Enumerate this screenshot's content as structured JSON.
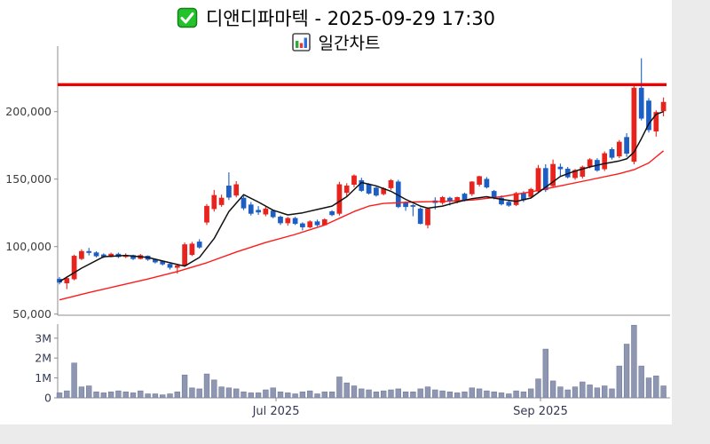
{
  "header": {
    "title": "디앤디파마텍 - 2025-09-29 17:30",
    "subtitle": "일간차트",
    "title_icon": "green-checkbox-icon",
    "subtitle_icon": "bar-chart-icon"
  },
  "chart_data": {
    "type": "candlestick",
    "title": "디앤디파마텍 - 2025-09-29 17:30",
    "subtitle": "일간차트",
    "grid": false,
    "legend": "none",
    "price_axis": {
      "side": "left",
      "ticks": [
        {
          "value": 200000,
          "label": "200,000"
        },
        {
          "value": 150000,
          "label": "150,000"
        },
        {
          "value": 100000,
          "label": "100,000"
        },
        {
          "value": 50000,
          "label": "50,000"
        }
      ],
      "range": [
        47000,
        245000
      ]
    },
    "volume_axis": {
      "side": "left",
      "unit": "millions",
      "ticks": [
        {
          "value": 3,
          "label": "3M"
        },
        {
          "value": 2,
          "label": "2M"
        },
        {
          "value": 1,
          "label": "1M"
        },
        {
          "value": 0,
          "label": "0"
        }
      ],
      "range": [
        0,
        3.75
      ]
    },
    "x_axis": {
      "labels": [
        {
          "text": "Jul 2025",
          "index": 29.4
        },
        {
          "text": "Sep 2025",
          "index": 65.3
        }
      ]
    },
    "hline": {
      "value": 220000,
      "color": "#ee0000"
    },
    "colors": {
      "up": "#e8231d",
      "down": "#1d5ec4",
      "volume": "#8e96b2",
      "volume_edge": "#737d9b",
      "ma_fast": "#111111",
      "ma_slow": "#ff1a1a",
      "axis": "#8c8c8c",
      "price_label": "#3c3c3c",
      "date_label": "#333a52"
    },
    "candles_format": [
      "open",
      "high",
      "low",
      "close",
      "volume_millions"
    ],
    "candles": [
      [
        76000,
        77500,
        72000,
        73500,
        0.25
      ],
      [
        73000,
        78000,
        68500,
        76500,
        0.35
      ],
      [
        76000,
        94000,
        75000,
        93000,
        1.75
      ],
      [
        91000,
        98000,
        90000,
        96500,
        0.55
      ],
      [
        96500,
        99000,
        93500,
        95500,
        0.6
      ],
      [
        95500,
        96500,
        92000,
        93000,
        0.3
      ],
      [
        94000,
        95000,
        91500,
        92500,
        0.25
      ],
      [
        92500,
        95500,
        92000,
        94500,
        0.3
      ],
      [
        94500,
        95500,
        91500,
        92500,
        0.35
      ],
      [
        92500,
        95000,
        91500,
        93500,
        0.3
      ],
      [
        93500,
        94000,
        90000,
        91000,
        0.25
      ],
      [
        91000,
        94500,
        90500,
        93500,
        0.35
      ],
      [
        93000,
        93500,
        89500,
        90500,
        0.2
      ],
      [
        90500,
        91000,
        87500,
        88500,
        0.2
      ],
      [
        89000,
        89500,
        86000,
        87000,
        0.15
      ],
      [
        87000,
        87500,
        83000,
        84500,
        0.2
      ],
      [
        84500,
        87000,
        80000,
        86000,
        0.3
      ],
      [
        86000,
        103000,
        85000,
        101500,
        1.15
      ],
      [
        94000,
        103500,
        93000,
        102000,
        0.5
      ],
      [
        103500,
        105500,
        98500,
        99500,
        0.45
      ],
      [
        118000,
        131500,
        116000,
        130000,
        1.2
      ],
      [
        128000,
        142000,
        126000,
        138000,
        0.9
      ],
      [
        131000,
        138500,
        129500,
        136000,
        0.55
      ],
      [
        145000,
        155000,
        134500,
        136500,
        0.5
      ],
      [
        138000,
        148500,
        136500,
        146000,
        0.45
      ],
      [
        136000,
        137500,
        127000,
        128500,
        0.3
      ],
      [
        131000,
        133000,
        123000,
        124500,
        0.25
      ],
      [
        127000,
        130000,
        123500,
        125500,
        0.25
      ],
      [
        124000,
        129500,
        122500,
        128000,
        0.4
      ],
      [
        126500,
        127500,
        121000,
        122000,
        0.5
      ],
      [
        122000,
        123000,
        116000,
        117500,
        0.3
      ],
      [
        117500,
        122000,
        115500,
        121000,
        0.25
      ],
      [
        121000,
        122000,
        116000,
        117000,
        0.2
      ],
      [
        117000,
        118000,
        112000,
        114500,
        0.3
      ],
      [
        114500,
        119500,
        113500,
        118500,
        0.35
      ],
      [
        118500,
        120000,
        115000,
        116000,
        0.2
      ],
      [
        116000,
        121000,
        115500,
        120000,
        0.3
      ],
      [
        126000,
        127000,
        122500,
        123500,
        0.3
      ],
      [
        124500,
        148000,
        123000,
        146000,
        1.05
      ],
      [
        140000,
        147000,
        137000,
        145000,
        0.75
      ],
      [
        146000,
        153500,
        144000,
        152500,
        0.6
      ],
      [
        149000,
        151000,
        140500,
        141500,
        0.45
      ],
      [
        146000,
        147000,
        138500,
        139500,
        0.4
      ],
      [
        143500,
        144500,
        137000,
        138000,
        0.3
      ],
      [
        139000,
        144000,
        138000,
        143000,
        0.35
      ],
      [
        143500,
        150000,
        142000,
        149000,
        0.4
      ],
      [
        148000,
        149500,
        128500,
        129500,
        0.45
      ],
      [
        132500,
        133500,
        126500,
        129500,
        0.3
      ],
      [
        130500,
        131500,
        122500,
        130000,
        0.3
      ],
      [
        128000,
        129000,
        116500,
        117000,
        0.45
      ],
      [
        116000,
        129000,
        113500,
        128000,
        0.55
      ],
      [
        134000,
        136500,
        127500,
        132500,
        0.4
      ],
      [
        132500,
        137500,
        131000,
        136500,
        0.35
      ],
      [
        136000,
        137000,
        130500,
        134000,
        0.3
      ],
      [
        133500,
        137000,
        132000,
        136500,
        0.25
      ],
      [
        139000,
        140000,
        133500,
        134500,
        0.3
      ],
      [
        139000,
        148500,
        137500,
        148000,
        0.5
      ],
      [
        146000,
        152500,
        144500,
        152000,
        0.45
      ],
      [
        150000,
        151500,
        143000,
        144000,
        0.35
      ],
      [
        141000,
        142000,
        135000,
        136000,
        0.3
      ],
      [
        136000,
        138000,
        130500,
        131500,
        0.25
      ],
      [
        133000,
        134000,
        129500,
        130500,
        0.2
      ],
      [
        131000,
        140500,
        130000,
        139500,
        0.35
      ],
      [
        139500,
        141000,
        133000,
        134500,
        0.3
      ],
      [
        137000,
        143500,
        136000,
        142500,
        0.45
      ],
      [
        141000,
        160500,
        139500,
        158000,
        0.95
      ],
      [
        158000,
        161000,
        140500,
        142000,
        2.45
      ],
      [
        145000,
        164500,
        143500,
        161000,
        0.85
      ],
      [
        159000,
        161500,
        152000,
        157500,
        0.55
      ],
      [
        157500,
        159000,
        150500,
        151500,
        0.4
      ],
      [
        151000,
        157500,
        149500,
        156500,
        0.55
      ],
      [
        152000,
        160000,
        150500,
        159000,
        0.8
      ],
      [
        159500,
        165500,
        158000,
        164500,
        0.65
      ],
      [
        164000,
        165500,
        155500,
        156500,
        0.5
      ],
      [
        157500,
        170500,
        156000,
        169000,
        0.6
      ],
      [
        172000,
        173500,
        164500,
        166000,
        0.45
      ],
      [
        167000,
        179000,
        165500,
        177500,
        1.6
      ],
      [
        181000,
        184000,
        166500,
        169000,
        2.7
      ],
      [
        163000,
        219500,
        161000,
        217500,
        3.65
      ],
      [
        217500,
        239500,
        193500,
        195000,
        1.6
      ],
      [
        208000,
        210000,
        184500,
        186500,
        1.0
      ],
      [
        185500,
        201000,
        181500,
        199500,
        1.1
      ],
      [
        200500,
        210500,
        196500,
        207000,
        0.6
      ]
    ],
    "ma_fast_points": [
      [
        0,
        74000
      ],
      [
        3,
        84000
      ],
      [
        6,
        92500
      ],
      [
        9,
        93500
      ],
      [
        12,
        92000
      ],
      [
        15,
        88000
      ],
      [
        17,
        85500
      ],
      [
        19,
        92000
      ],
      [
        21,
        106000
      ],
      [
        23,
        126000
      ],
      [
        25,
        138500
      ],
      [
        27,
        133000
      ],
      [
        29,
        127000
      ],
      [
        31,
        123500
      ],
      [
        33,
        125000
      ],
      [
        35,
        127500
      ],
      [
        37,
        130000
      ],
      [
        39,
        137000
      ],
      [
        41,
        147500
      ],
      [
        43,
        145000
      ],
      [
        45,
        141000
      ],
      [
        47,
        135000
      ],
      [
        49,
        130000
      ],
      [
        50,
        128500
      ],
      [
        52,
        130000
      ],
      [
        54,
        133000
      ],
      [
        56,
        135500
      ],
      [
        58,
        137000
      ],
      [
        60,
        135000
      ],
      [
        62,
        133500
      ],
      [
        64,
        136000
      ],
      [
        66,
        144000
      ],
      [
        68,
        152000
      ],
      [
        70,
        156000
      ],
      [
        72,
        159000
      ],
      [
        74,
        161500
      ],
      [
        76,
        163500
      ],
      [
        77,
        165000
      ],
      [
        78,
        170000
      ],
      [
        79,
        180000
      ],
      [
        80,
        191000
      ],
      [
        81,
        198000
      ],
      [
        82,
        200000
      ]
    ],
    "ma_slow_points": [
      [
        0,
        60500
      ],
      [
        4,
        66000
      ],
      [
        8,
        71000
      ],
      [
        12,
        76000
      ],
      [
        16,
        81500
      ],
      [
        20,
        88000
      ],
      [
        24,
        96000
      ],
      [
        28,
        103000
      ],
      [
        32,
        109000
      ],
      [
        36,
        116000
      ],
      [
        40,
        126000
      ],
      [
        42,
        130000
      ],
      [
        44,
        132000
      ],
      [
        48,
        133000
      ],
      [
        52,
        133500
      ],
      [
        56,
        134500
      ],
      [
        60,
        137000
      ],
      [
        64,
        140500
      ],
      [
        68,
        145000
      ],
      [
        72,
        149500
      ],
      [
        76,
        154000
      ],
      [
        78,
        157000
      ],
      [
        80,
        162000
      ],
      [
        82,
        171000
      ]
    ]
  }
}
